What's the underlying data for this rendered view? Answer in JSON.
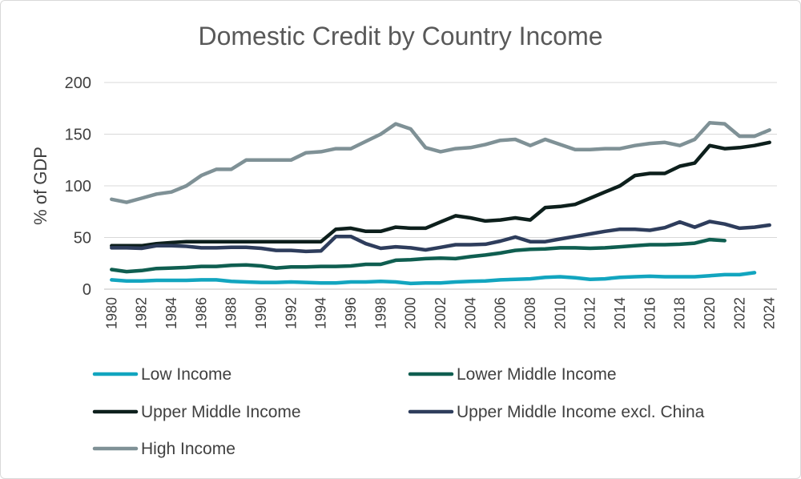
{
  "chart_data": {
    "type": "line",
    "title": "Domestic Credit by Country Income",
    "xlabel": "",
    "ylabel": "% of GDP",
    "ylim": [
      0,
      200
    ],
    "y_ticks": [
      "0",
      "50",
      "100",
      "150",
      "200"
    ],
    "x": [
      1980,
      1981,
      1982,
      1983,
      1984,
      1985,
      1986,
      1987,
      1988,
      1989,
      1990,
      1991,
      1992,
      1993,
      1994,
      1995,
      1996,
      1997,
      1998,
      1999,
      2000,
      2001,
      2002,
      2003,
      2004,
      2005,
      2006,
      2007,
      2008,
      2009,
      2010,
      2011,
      2012,
      2013,
      2014,
      2015,
      2016,
      2017,
      2018,
      2019,
      2020,
      2021,
      2022,
      2023,
      2024
    ],
    "x_tick_labels": [
      "1980",
      "1982",
      "1984",
      "1986",
      "1988",
      "1990",
      "1992",
      "1994",
      "1996",
      "1998",
      "2000",
      "2002",
      "2004",
      "2006",
      "2008",
      "2010",
      "2012",
      "2014",
      "2016",
      "2018",
      "2020",
      "2022",
      "2024"
    ],
    "grid": true,
    "legend_position": "bottom",
    "series": [
      {
        "name": "Low Income",
        "color": "#12a5bf",
        "values": [
          9,
          8,
          8,
          8.5,
          8.5,
          8.5,
          9,
          9,
          7.5,
          7,
          6.5,
          6.5,
          7,
          6.5,
          6,
          6,
          7,
          7,
          7.5,
          7,
          5.5,
          6,
          6,
          7,
          7.5,
          8,
          9,
          9.5,
          10,
          11.5,
          12,
          11,
          9.5,
          10,
          11.5,
          12,
          12.5,
          12,
          12,
          12,
          13,
          14,
          14,
          16,
          null
        ]
      },
      {
        "name": "Lower Middle Income",
        "color": "#0f5e50",
        "values": [
          19,
          17,
          18,
          20,
          20.5,
          21,
          22,
          22,
          23,
          23.5,
          22.5,
          20.5,
          21.5,
          21.5,
          22,
          22,
          22.5,
          24,
          24,
          28,
          28.5,
          29.5,
          30,
          29.5,
          31.5,
          33,
          35,
          37.5,
          38.5,
          39,
          40,
          40,
          39.5,
          40,
          41,
          42,
          43,
          43,
          43.5,
          44.5,
          48,
          47,
          null,
          null,
          null
        ]
      },
      {
        "name": "Upper Middle Income",
        "color": "#0d1f1c",
        "values": [
          42,
          42,
          42,
          44,
          45,
          46,
          46,
          46,
          46,
          46,
          46,
          46,
          46,
          46,
          46,
          58,
          59,
          56,
          56,
          60,
          59,
          59,
          65,
          71,
          69,
          66,
          67,
          69,
          67,
          79,
          80,
          82,
          88,
          94,
          100,
          110,
          112,
          112,
          119,
          122,
          139,
          136,
          137,
          139,
          142
        ]
      },
      {
        "name": "Upper Middle Income excl. China",
        "color": "#2e3d5c",
        "values": [
          40,
          40,
          39.5,
          42,
          42,
          41.5,
          40,
          40,
          40.5,
          40.5,
          39.5,
          37.5,
          37.5,
          36.5,
          37,
          51,
          51,
          44,
          39.5,
          41,
          40,
          38,
          40.5,
          43,
          43,
          43.5,
          46.5,
          50.5,
          46,
          46,
          48.5,
          51,
          53.5,
          56,
          58,
          58,
          57,
          59.5,
          65,
          60,
          65.5,
          63,
          59,
          60,
          62
        ]
      },
      {
        "name": "High Income",
        "color": "#7f9196",
        "values": [
          87,
          84,
          88,
          92,
          94,
          100,
          110,
          116,
          116,
          125,
          125,
          125,
          125,
          132,
          133,
          136,
          136,
          143,
          150,
          160,
          155,
          137,
          133,
          136,
          137,
          140,
          144,
          145,
          139,
          145,
          140,
          135,
          135,
          136,
          136,
          139,
          141,
          142,
          139,
          145,
          161,
          160,
          148,
          148,
          154
        ]
      }
    ]
  }
}
